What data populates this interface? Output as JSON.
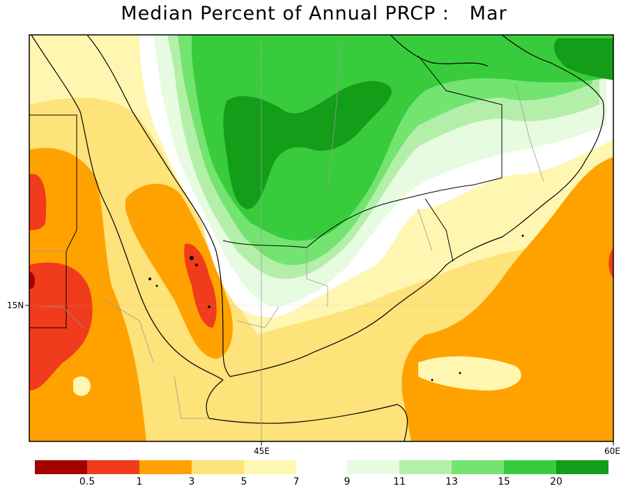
{
  "title": "Median Percent of Annual PRCP :   Mar",
  "axis": {
    "lat_labels": [
      "15N"
    ],
    "lon_labels": [
      "45E",
      "60E"
    ]
  },
  "colorbar": {
    "bins": [
      {
        "color": "#a50000"
      },
      {
        "color": "#f03c1c"
      },
      {
        "color": "#ffa200"
      },
      {
        "color": "#fee27a"
      },
      {
        "color": "#fff6b2"
      },
      {
        "color": "#e6fbe0"
      },
      {
        "color": "#b4efaa"
      },
      {
        "color": "#73e470"
      },
      {
        "color": "#38cc3c"
      },
      {
        "color": "#139d19"
      }
    ],
    "labels": [
      "0.5",
      "1",
      "3",
      "5",
      "7",
      "9",
      "11",
      "13",
      "15",
      "20"
    ]
  }
}
